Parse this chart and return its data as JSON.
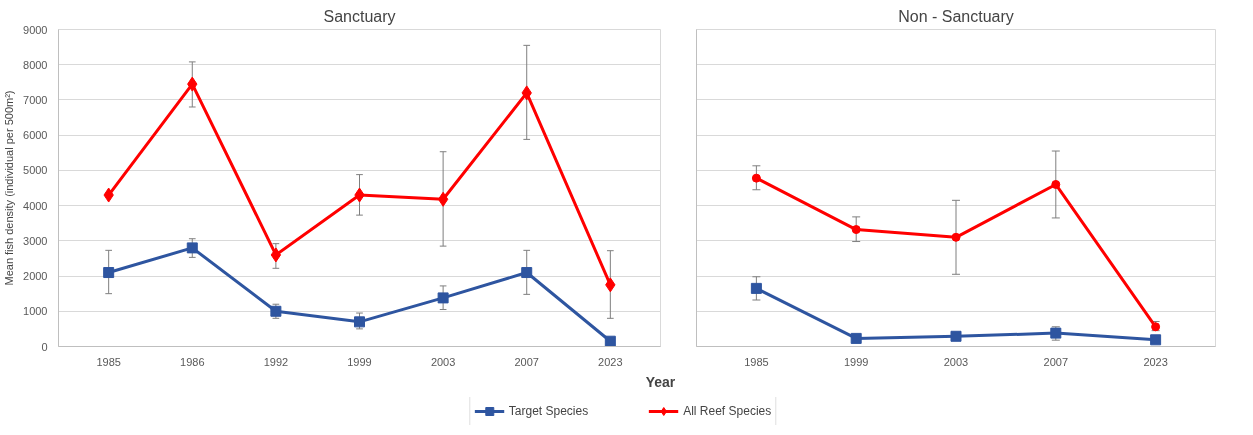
{
  "chart_data": [
    {
      "type": "line",
      "title": "Sanctuary",
      "xlabel": "Year",
      "ylabel": "Mean fish density (individual per 500m²)",
      "categories": [
        "1985",
        "1986",
        "1992",
        "1999",
        "2003",
        "2007",
        "2023"
      ],
      "series": [
        {
          "name": "Target Species",
          "color": "#2e55a0",
          "marker": "square",
          "values": [
            2100,
            2800,
            1000,
            700,
            1380,
            2100,
            150
          ],
          "errors": [
            [
              1500,
              2730
            ],
            [
              2530,
              3060
            ],
            [
              800,
              1200
            ],
            [
              500,
              950
            ],
            [
              1050,
              1720
            ],
            [
              1480,
              2730
            ],
            null
          ]
        },
        {
          "name": "All Reef Species",
          "color": "#ff0000",
          "marker": "diamond",
          "values": [
            4300,
            7450,
            2600,
            4300,
            4180,
            7200,
            1750
          ],
          "errors": [
            null,
            [
              6800,
              8080
            ],
            [
              2220,
              2920
            ],
            [
              3730,
              4880
            ],
            [
              2850,
              5530
            ],
            [
              5880,
              8550
            ],
            [
              800,
              2720
            ]
          ]
        }
      ],
      "ylim": [
        0,
        9000
      ],
      "yticks": [
        0,
        1000,
        2000,
        3000,
        4000,
        5000,
        6000,
        7000,
        8000,
        9000
      ],
      "grid": "y",
      "legend": "bottom"
    },
    {
      "type": "line",
      "title": "Non - Sanctuary",
      "categories": [
        "1985",
        "1999",
        "2003",
        "2007",
        "2023"
      ],
      "series": [
        {
          "color": "#2e55a0",
          "marker": "square",
          "values": [
            1650,
            230,
            290,
            380,
            190
          ],
          "errors": [
            [
              1320,
              1980
            ],
            null,
            null,
            [
              180,
              560
            ],
            null
          ]
        },
        {
          "color": "#ff0000",
          "marker": "circle",
          "values": [
            4780,
            3320,
            3100,
            4600,
            560
          ],
          "errors": [
            [
              4450,
              5130
            ],
            [
              2980,
              3680
            ],
            [
              2050,
              4150
            ],
            [
              3650,
              5550
            ],
            [
              450,
              710
            ]
          ]
        }
      ],
      "ylim": [
        0,
        9000
      ],
      "yticks": [
        0,
        1000,
        2000,
        3000,
        4000,
        5000,
        6000,
        7000,
        8000,
        9000
      ],
      "grid": "y",
      "tick_labels": "x"
    }
  ]
}
